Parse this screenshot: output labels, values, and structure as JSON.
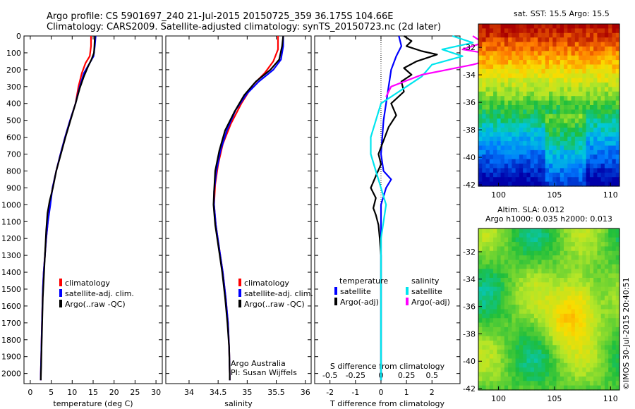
{
  "title_line1": "Argo profile: CS 5901697_240 21-Jul-2015 20150725_359 36.175S 104.66E",
  "title_line2": "Climatology: CARS2009. Satellite-adjusted climatology: synTS_20150723.nc (2d later)",
  "credit": "Argo Australia",
  "pi": "PI: Susan Wijffels",
  "footer": "©IMOS 30-Jul-2015 20:40:51",
  "colors": {
    "climatology": "#ff0000",
    "satellite": "#0000ff",
    "argo": "#000000",
    "sat_sal": "#00e5ee",
    "argo_sal": "#ff00ff"
  },
  "chart_data": [
    {
      "type": "line",
      "name": "temperature",
      "xlabel": "temperature (deg C)",
      "xlim": [
        -1.5,
        31.5
      ],
      "xticks": [
        0,
        5,
        10,
        15,
        20,
        25,
        30
      ],
      "ylim": [
        0,
        2060
      ],
      "yticks": [
        0,
        100,
        200,
        300,
        400,
        500,
        600,
        700,
        800,
        900,
        1000,
        1100,
        1200,
        1300,
        1400,
        1500,
        1600,
        1700,
        1800,
        1900,
        2000
      ],
      "legend": [
        "climatology",
        "satellite-adj. clim.",
        "Argo(..raw -QC)"
      ],
      "series": [
        {
          "name": "climatology",
          "color": "climatology",
          "points": [
            [
              14.5,
              0
            ],
            [
              14.5,
              60
            ],
            [
              14.2,
              120
            ],
            [
              13.2,
              160
            ],
            [
              12.3,
              220
            ],
            [
              11.5,
              300
            ],
            [
              10.8,
              400
            ],
            [
              9.5,
              500
            ],
            [
              8.3,
              600
            ],
            [
              7.2,
              700
            ],
            [
              6.2,
              800
            ],
            [
              5.3,
              900
            ],
            [
              4.7,
              1000
            ],
            [
              4.2,
              1100
            ],
            [
              3.8,
              1200
            ],
            [
              3.5,
              1300
            ],
            [
              3.2,
              1400
            ],
            [
              3.0,
              1500
            ],
            [
              2.9,
              1600
            ],
            [
              2.8,
              1700
            ],
            [
              2.7,
              1800
            ],
            [
              2.6,
              1900
            ],
            [
              2.5,
              2000
            ],
            [
              2.5,
              2040
            ]
          ]
        },
        {
          "name": "satellite-adj. clim.",
          "color": "satellite",
          "points": [
            [
              15.6,
              0
            ],
            [
              15.4,
              60
            ],
            [
              15.1,
              120
            ],
            [
              14.2,
              160
            ],
            [
              12.8,
              220
            ],
            [
              11.8,
              300
            ],
            [
              10.8,
              400
            ],
            [
              9.5,
              500
            ],
            [
              8.3,
              600
            ],
            [
              7.2,
              700
            ],
            [
              6.2,
              800
            ],
            [
              5.3,
              900
            ],
            [
              4.8,
              1000
            ],
            [
              4.2,
              1100
            ],
            [
              3.8,
              1200
            ],
            [
              3.5,
              1300
            ],
            [
              3.2,
              1400
            ],
            [
              3.0,
              1500
            ],
            [
              2.9,
              1600
            ],
            [
              2.8,
              1700
            ],
            [
              2.7,
              1800
            ],
            [
              2.6,
              1900
            ],
            [
              2.5,
              2000
            ],
            [
              2.5,
              2040
            ]
          ]
        },
        {
          "name": "Argo(..raw -QC)",
          "color": "argo",
          "points": [
            [
              15.4,
              0
            ],
            [
              15.3,
              60
            ],
            [
              15.2,
              100
            ],
            [
              14.6,
              140
            ],
            [
              13.8,
              180
            ],
            [
              12.8,
              240
            ],
            [
              11.8,
              310
            ],
            [
              10.8,
              400
            ],
            [
              9.6,
              500
            ],
            [
              8.4,
              600
            ],
            [
              7.3,
              700
            ],
            [
              6.2,
              800
            ],
            [
              5.4,
              900
            ],
            [
              4.6,
              980
            ],
            [
              4.1,
              1050
            ],
            [
              3.8,
              1150
            ],
            [
              3.6,
              1250
            ],
            [
              3.4,
              1350
            ],
            [
              3.2,
              1450
            ],
            [
              3.0,
              1550
            ],
            [
              2.9,
              1650
            ],
            [
              2.8,
              1750
            ],
            [
              2.7,
              1850
            ],
            [
              2.6,
              1950
            ],
            [
              2.5,
              2040
            ]
          ]
        }
      ]
    },
    {
      "type": "line",
      "name": "salinity",
      "xlabel": "salinity",
      "xlim": [
        33.6,
        36.1
      ],
      "xticks": [
        34,
        34.5,
        35,
        35.5,
        36
      ],
      "ylim": [
        0,
        2060
      ],
      "legend": [
        "climatology",
        "satellite-adj. clim.",
        "Argo(..raw -QC)"
      ],
      "series": [
        {
          "name": "climatology",
          "color": "climatology",
          "points": [
            [
              35.53,
              0
            ],
            [
              35.53,
              80
            ],
            [
              35.45,
              150
            ],
            [
              35.3,
              220
            ],
            [
              35.1,
              290
            ],
            [
              34.9,
              400
            ],
            [
              34.72,
              520
            ],
            [
              34.58,
              640
            ],
            [
              34.5,
              760
            ],
            [
              34.45,
              880
            ],
            [
              34.43,
              1000
            ],
            [
              34.46,
              1120
            ],
            [
              34.52,
              1260
            ],
            [
              34.58,
              1400
            ],
            [
              34.63,
              1550
            ],
            [
              34.67,
              1700
            ],
            [
              34.69,
              1850
            ],
            [
              34.7,
              2000
            ],
            [
              34.7,
              2040
            ]
          ]
        },
        {
          "name": "satellite-adj. clim.",
          "color": "satellite",
          "points": [
            [
              35.62,
              0
            ],
            [
              35.62,
              60
            ],
            [
              35.58,
              140
            ],
            [
              35.45,
              200
            ],
            [
              35.2,
              270
            ],
            [
              35.0,
              340
            ],
            [
              34.8,
              440
            ],
            [
              34.65,
              560
            ],
            [
              34.54,
              680
            ],
            [
              34.47,
              800
            ],
            [
              34.43,
              920
            ],
            [
              34.43,
              1000
            ],
            [
              34.46,
              1120
            ],
            [
              34.52,
              1260
            ],
            [
              34.58,
              1400
            ],
            [
              34.63,
              1550
            ],
            [
              34.67,
              1700
            ],
            [
              34.69,
              1850
            ],
            [
              34.7,
              2000
            ],
            [
              34.7,
              2040
            ]
          ]
        },
        {
          "name": "Argo(..raw -QC)",
          "color": "argo",
          "points": [
            [
              35.62,
              0
            ],
            [
              35.6,
              60
            ],
            [
              35.55,
              140
            ],
            [
              35.4,
              200
            ],
            [
              35.15,
              270
            ],
            [
              34.95,
              350
            ],
            [
              34.78,
              450
            ],
            [
              34.62,
              560
            ],
            [
              34.52,
              680
            ],
            [
              34.45,
              800
            ],
            [
              34.43,
              920
            ],
            [
              34.42,
              1000
            ],
            [
              34.45,
              1120
            ],
            [
              34.51,
              1260
            ],
            [
              34.57,
              1400
            ],
            [
              34.62,
              1550
            ],
            [
              34.66,
              1700
            ],
            [
              34.69,
              1850
            ],
            [
              34.7,
              2000
            ],
            [
              34.7,
              2040
            ]
          ]
        }
      ]
    },
    {
      "type": "line",
      "name": "differences",
      "xlabel": "T difference from climatology",
      "xlabel2": "S difference from climatology",
      "xlim": [
        -2.6,
        3.1
      ],
      "xticks": [
        -2,
        -1,
        0,
        1,
        2
      ],
      "xticks2": [
        -0.5,
        -0.25,
        0,
        0.25,
        0.5
      ],
      "xticks2_labels": [
        "-0.5",
        "-0.25",
        "0",
        "0.25",
        "0.5"
      ],
      "ylim": [
        0,
        2060
      ],
      "legend_headers": [
        "temperature",
        "salinity"
      ],
      "legend": [
        "satellite",
        "Argo(-adj)",
        "satellite",
        "Argo(-adj)"
      ],
      "series": [
        {
          "name": "satellite",
          "group": "temperature",
          "color": "satellite",
          "points": [
            [
              0.7,
              0
            ],
            [
              0.8,
              60
            ],
            [
              0.6,
              120
            ],
            [
              0.4,
              200
            ],
            [
              0.3,
              300
            ],
            [
              0.2,
              400
            ],
            [
              0.1,
              500
            ],
            [
              0.05,
              600
            ],
            [
              0.0,
              700
            ],
            [
              0.1,
              800
            ],
            [
              0.4,
              850
            ],
            [
              0.2,
              900
            ],
            [
              0.0,
              1000
            ],
            [
              0.0,
              1200
            ],
            [
              0.0,
              1500
            ],
            [
              0.0,
              2040
            ]
          ]
        },
        {
          "name": "Argo(-adj)",
          "group": "temperature",
          "color": "argo",
          "points": [
            [
              0.9,
              0
            ],
            [
              1.2,
              30
            ],
            [
              1.0,
              60
            ],
            [
              1.6,
              90
            ],
            [
              2.2,
              110
            ],
            [
              1.4,
              150
            ],
            [
              0.9,
              190
            ],
            [
              1.2,
              230
            ],
            [
              0.8,
              270
            ],
            [
              0.9,
              330
            ],
            [
              0.4,
              400
            ],
            [
              0.6,
              470
            ],
            [
              0.3,
              540
            ],
            [
              0.1,
              620
            ],
            [
              -0.1,
              700
            ],
            [
              0.0,
              760
            ],
            [
              -0.2,
              830
            ],
            [
              -0.4,
              900
            ],
            [
              -0.2,
              960
            ],
            [
              -0.3,
              1020
            ],
            [
              -0.2,
              1060
            ],
            [
              -0.1,
              1120
            ],
            [
              -0.05,
              1200
            ],
            [
              0.0,
              1300
            ],
            [
              0.0,
              1600
            ],
            [
              0.0,
              2040
            ]
          ]
        },
        {
          "name": "satellite",
          "group": "salinity",
          "color": "sat_sal",
          "points": [
            [
              0.7,
              0
            ],
            [
              0.9,
              40
            ],
            [
              0.6,
              80
            ],
            [
              0.8,
              120
            ],
            [
              0.5,
              170
            ],
            [
              0.4,
              240
            ],
            [
              0.2,
              320
            ],
            [
              0.0,
              400
            ],
            [
              -0.05,
              500
            ],
            [
              -0.1,
              600
            ],
            [
              -0.1,
              700
            ],
            [
              -0.05,
              800
            ],
            [
              0.0,
              900
            ],
            [
              0.05,
              1000
            ],
            [
              0.0,
              1200
            ],
            [
              0.0,
              2040
            ]
          ]
        },
        {
          "name": "Argo(-adj)",
          "group": "salinity",
          "color": "argo_sal",
          "points": [
            [
              0.9,
              0
            ],
            [
              1.0,
              40
            ],
            [
              0.8,
              80
            ],
            [
              1.2,
              120
            ],
            [
              0.9,
              170
            ],
            [
              0.4,
              230
            ],
            [
              0.1,
              300
            ],
            [
              0.05,
              360
            ]
          ]
        }
      ]
    },
    {
      "type": "heatmap",
      "name": "sst-map",
      "title": "sat. SST: 15.5 Argo: 15.5",
      "xlim": [
        98.2,
        110.8
      ],
      "ylim": [
        -42.1,
        -30.3
      ],
      "xticks": [
        100,
        105,
        110
      ],
      "yticks": [
        -42,
        -40,
        -38,
        -36,
        -34,
        -32
      ]
    },
    {
      "type": "heatmap",
      "name": "sla-map",
      "title1": "Altim. SLA: 0.012",
      "title2": "Argo h1000: 0.035 h2000: 0.013",
      "xlim": [
        98.2,
        110.8
      ],
      "ylim": [
        -42.1,
        -30.3
      ],
      "xticks": [
        100,
        105,
        110
      ],
      "yticks": [
        -42,
        -40,
        -38,
        -36,
        -34,
        -32
      ]
    }
  ]
}
